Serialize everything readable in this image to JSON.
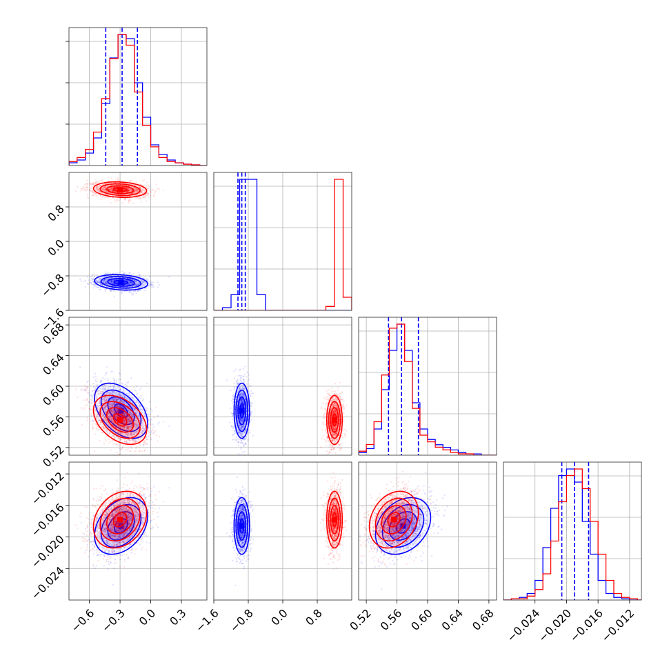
{
  "chart_data": {
    "type": "corner",
    "grid": true,
    "colors": {
      "series_a": "#0000ff",
      "series_b": "#ff0000"
    },
    "parameters": [
      {
        "range": [
          -0.8,
          0.55
        ],
        "ticks": [
          -0.6,
          -0.3,
          0.0,
          0.3
        ],
        "tick_labels": [
          "−0.6",
          "−0.3",
          "0.0",
          "0.3"
        ]
      },
      {
        "range": [
          -1.6,
          1.6
        ],
        "ticks": [
          -1.6,
          -0.8,
          0.0,
          0.8
        ],
        "tick_labels": [
          "−1.6",
          "−0.8",
          "0.0",
          "0.8"
        ]
      },
      {
        "range": [
          0.51,
          0.69
        ],
        "ticks": [
          0.52,
          0.56,
          0.6,
          0.64,
          0.68
        ],
        "tick_labels": [
          "0.52",
          "0.56",
          "0.60",
          "0.64",
          "0.68"
        ]
      },
      {
        "range": [
          -0.028,
          -0.0105
        ],
        "ticks": [
          -0.024,
          -0.02,
          -0.016,
          -0.012
        ],
        "tick_labels": [
          "−0.024",
          "−0.020",
          "−0.016",
          "−0.012"
        ]
      }
    ],
    "series": [
      {
        "color": "#0000ff",
        "means": [
          -0.29,
          -0.95,
          0.568,
          -0.0186
        ],
        "sigmas": [
          0.13,
          0.09,
          0.018,
          0.0018
        ],
        "correlations": [
          [
            0,
            2,
            -0.45
          ],
          [
            0,
            3,
            0.35
          ],
          [
            2,
            3,
            0.3
          ],
          [
            0,
            1,
            -0.2
          ]
        ],
        "quantiles": [
          [
            -0.44,
            -0.28,
            -0.13
          ],
          [
            -1.04,
            -0.95,
            -0.87
          ],
          [
            0.549,
            0.566,
            0.588
          ],
          [
            -0.0206,
            -0.019,
            -0.0172
          ]
        ],
        "hist": [
          {
            "edges": [
              -0.8,
              -0.72,
              -0.64,
              -0.56,
              -0.48,
              -0.4,
              -0.32,
              -0.24,
              -0.16,
              -0.08,
              0.0,
              0.08,
              0.16,
              0.24,
              0.32,
              0.4,
              0.48,
              0.55
            ],
            "counts": [
              2,
              4,
              9,
              20,
              45,
              78,
              95,
              92,
              60,
              35,
              15,
              8,
              4,
              2,
              1,
              0.5,
              0
            ]
          },
          {
            "edges": [
              -1.6,
              -1.4,
              -1.2,
              -1.0,
              -0.8,
              -0.6,
              -0.4,
              -0.2,
              0.0,
              0.2,
              0.4,
              0.6,
              0.8,
              1.0,
              1.2,
              1.4,
              1.6
            ],
            "counts": [
              0,
              2,
              12,
              100,
              100,
              12,
              0,
              0,
              0,
              0,
              0,
              0,
              0,
              0,
              0,
              0
            ]
          },
          {
            "edges": [
              0.51,
              0.52,
              0.53,
              0.54,
              0.55,
              0.56,
              0.57,
              0.58,
              0.59,
              0.6,
              0.61,
              0.62,
              0.63,
              0.64,
              0.65,
              0.66,
              0.67,
              0.68,
              0.69
            ],
            "counts": [
              2,
              5,
              20,
              50,
              80,
              100,
              80,
              40,
              20,
              12,
              8,
              6,
              4,
              2,
              1,
              1,
              0,
              0
            ]
          },
          {
            "edges": [
              -0.028,
              -0.027,
              -0.026,
              -0.025,
              -0.024,
              -0.023,
              -0.022,
              -0.021,
              -0.02,
              -0.019,
              -0.018,
              -0.017,
              -0.016,
              -0.015,
              -0.014,
              -0.013,
              -0.012,
              -0.011,
              -0.0105
            ],
            "counts": [
              0,
              1,
              2,
              5,
              15,
              40,
              70,
              95,
              100,
              90,
              60,
              35,
              15,
              5,
              2,
              1,
              0,
              0
            ]
          }
        ]
      },
      {
        "color": "#ff0000",
        "means": [
          -0.3,
          1.2,
          0.556,
          -0.0178
        ],
        "sigmas": [
          0.13,
          0.09,
          0.016,
          0.0018
        ],
        "correlations": [
          [
            0,
            2,
            -0.4
          ],
          [
            0,
            3,
            0.25
          ],
          [
            2,
            3,
            0.25
          ],
          [
            0,
            1,
            -0.15
          ]
        ],
        "quantiles": [],
        "hist": [
          {
            "edges": [
              -0.8,
              -0.72,
              -0.64,
              -0.56,
              -0.48,
              -0.4,
              -0.32,
              -0.24,
              -0.16,
              -0.08,
              0.0,
              0.08,
              0.16,
              0.24,
              0.32,
              0.4,
              0.48,
              0.55
            ],
            "counts": [
              3,
              6,
              12,
              25,
              50,
              80,
              98,
              90,
              55,
              30,
              14,
              6,
              3,
              2,
              1,
              0.5,
              0
            ]
          },
          {
            "edges": [
              -1.6,
              -1.4,
              -1.2,
              -1.0,
              -0.8,
              -0.6,
              -0.4,
              -0.2,
              0.0,
              0.2,
              0.4,
              0.6,
              0.8,
              1.0,
              1.2,
              1.4,
              1.6
            ],
            "counts": [
              0,
              0,
              0,
              0,
              0,
              0,
              0,
              0,
              0,
              0,
              0,
              0,
              0,
              3,
              100,
              10
            ]
          },
          {
            "edges": [
              0.51,
              0.52,
              0.53,
              0.54,
              0.55,
              0.56,
              0.57,
              0.58,
              0.59,
              0.6,
              0.61,
              0.62,
              0.63,
              0.64,
              0.65,
              0.66,
              0.67,
              0.68,
              0.69
            ],
            "counts": [
              3,
              8,
              25,
              60,
              95,
              98,
              70,
              35,
              15,
              10,
              6,
              4,
              2,
              1,
              1,
              0,
              0,
              0
            ]
          },
          {
            "edges": [
              -0.028,
              -0.027,
              -0.026,
              -0.025,
              -0.024,
              -0.023,
              -0.022,
              -0.021,
              -0.02,
              -0.019,
              -0.018,
              -0.017,
              -0.016,
              -0.015,
              -0.014,
              -0.013,
              -0.012,
              -0.011,
              -0.0105
            ],
            "counts": [
              0,
              1,
              1,
              3,
              8,
              20,
              45,
              75,
              95,
              100,
              85,
              60,
              35,
              15,
              5,
              2,
              1,
              0
            ]
          }
        ]
      }
    ]
  }
}
